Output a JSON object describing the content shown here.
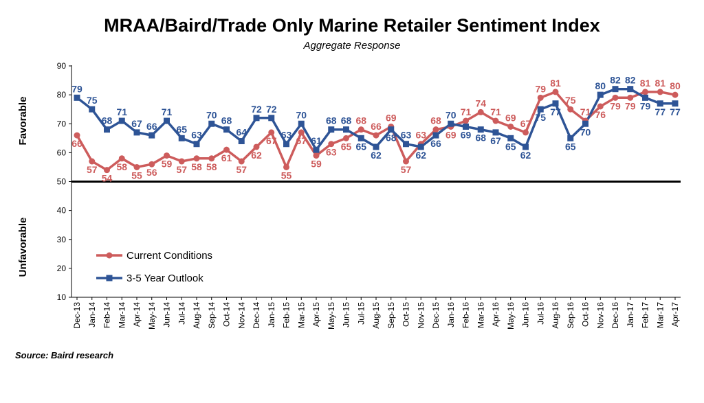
{
  "chart_data": {
    "type": "line",
    "title": "MRAA/Baird/Trade Only Marine Retailer Sentiment Index",
    "subtitle": "Aggregate Response",
    "source": "Source: Baird research",
    "ylim": [
      10,
      90
    ],
    "yticks": [
      "10",
      "20",
      "30",
      "40",
      "50",
      "60",
      "70",
      "80",
      "90"
    ],
    "reference_line": 50,
    "favorable_label": "Favorable",
    "unfavorable_label": "Unfavorable",
    "legend_position": "bottom-left",
    "categories": [
      "Dec-13",
      "Jan-14",
      "Feb-14",
      "Mar-14",
      "Apr-14",
      "May-14",
      "Jun-14",
      "Jul-14",
      "Aug-14",
      "Sep-14",
      "Oct-14",
      "Nov-14",
      "Dec-14",
      "Jan-15",
      "Feb-15",
      "Mar-15",
      "Apr-15",
      "May-15",
      "Jun-15",
      "Jul-15",
      "Aug-15",
      "Sep-15",
      "Oct-15",
      "Nov-15",
      "Dec-15",
      "Jan-16",
      "Feb-16",
      "Mar-16",
      "Apr-16",
      "May-16",
      "Jun-16",
      "Jul-16",
      "Aug-16",
      "Sep-16",
      "Oct-16",
      "Nov-16",
      "Dec-16",
      "Jan-17",
      "Feb-17",
      "Mar-17",
      "Apr-17"
    ],
    "series": [
      {
        "name": "Current Conditions",
        "color": "#cd5c5c",
        "marker": "circle",
        "values": [
          66,
          57,
          54,
          58,
          55,
          56,
          59,
          57,
          58,
          58,
          61,
          57,
          62,
          67,
          55,
          67,
          59,
          63,
          65,
          68,
          66,
          69,
          57,
          63,
          68,
          69,
          71,
          74,
          71,
          69,
          67,
          79,
          81,
          75,
          71,
          76,
          79,
          79,
          81,
          81,
          80
        ]
      },
      {
        "name": "3-5 Year Outlook",
        "color": "#2e5496",
        "marker": "square",
        "values": [
          79,
          75,
          68,
          71,
          67,
          66,
          71,
          65,
          63,
          70,
          68,
          64,
          72,
          72,
          63,
          70,
          61,
          68,
          68,
          65,
          62,
          68,
          63,
          62,
          66,
          70,
          69,
          68,
          67,
          65,
          62,
          75,
          77,
          65,
          70,
          80,
          82,
          82,
          79,
          77,
          77
        ]
      }
    ]
  }
}
